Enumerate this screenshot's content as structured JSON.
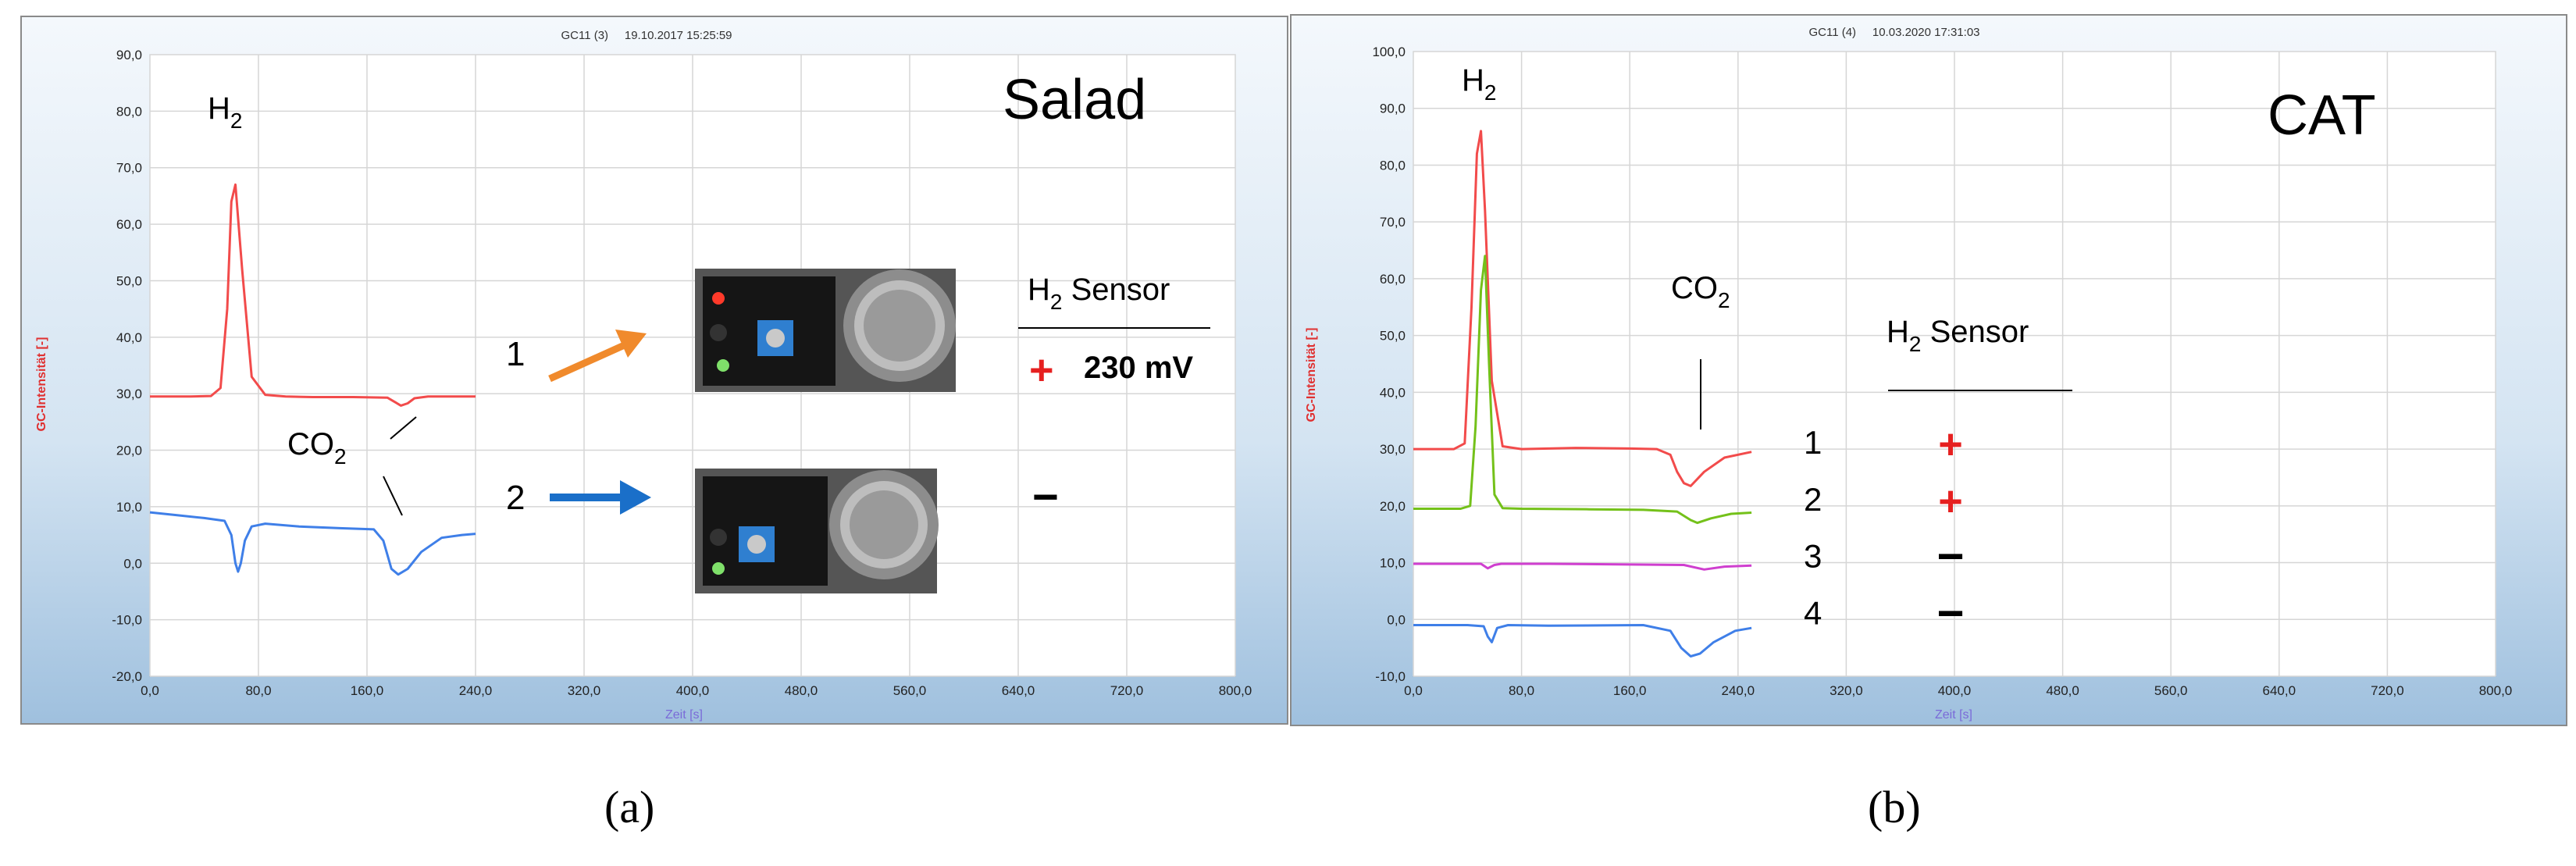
{
  "colors": {
    "red": "#f24b4b",
    "blue": "#3f7fe8",
    "green": "#74c11a",
    "magenta": "#cf3fcf",
    "orange": "#f08a2c",
    "arrow_blue": "#1a6fc9",
    "ylabel": "#e03030",
    "xlabel": "#7a6ad8"
  },
  "captions": {
    "a": "(a)",
    "b": "(b)"
  },
  "chart_data": [
    {
      "type": "line",
      "panel": "a",
      "header": "GC11 (3)     19.10.2017 15:25:59",
      "title": "Salad",
      "xlabel": "Zeit [s]",
      "ylabel": "GC-Intensität [-]",
      "xlim": [
        0,
        800
      ],
      "ylim": [
        -20,
        90
      ],
      "xticks": [
        "0,0",
        "80,0",
        "160,0",
        "240,0",
        "320,0",
        "400,0",
        "480,0",
        "560,0",
        "640,0",
        "720,0",
        "800,0"
      ],
      "yticks": [
        "-20,0",
        "-10,0",
        "0,0",
        "10,0",
        "20,0",
        "30,0",
        "40,0",
        "50,0",
        "60,0",
        "70,0",
        "80,0",
        "90,0"
      ],
      "grid": true,
      "series": [
        {
          "color": "red",
          "x": [
            0,
            30,
            45,
            52,
            57,
            60,
            63,
            68,
            75,
            85,
            100,
            120,
            150,
            175,
            180,
            185,
            190,
            195,
            205,
            220,
            240
          ],
          "y": [
            29.5,
            29.5,
            29.6,
            31,
            45,
            64,
            67,
            52,
            33,
            29.8,
            29.5,
            29.4,
            29.4,
            29.3,
            28.6,
            27.9,
            28.3,
            29.2,
            29.5,
            29.5,
            29.5
          ]
        },
        {
          "color": "blue",
          "x": [
            0,
            20,
            40,
            55,
            60,
            63,
            65,
            67,
            70,
            75,
            85,
            110,
            140,
            165,
            172,
            178,
            183,
            190,
            200,
            215,
            230,
            240
          ],
          "y": [
            9,
            8.5,
            8,
            7.5,
            5,
            0,
            -1.5,
            0,
            4,
            6.5,
            7,
            6.5,
            6.2,
            6,
            4,
            -1,
            -2,
            -1,
            2,
            4.5,
            5,
            5.2
          ]
        }
      ],
      "annotations": {
        "h2": "H",
        "h2_sub": "2",
        "co2": "CO",
        "co2_sub": "2",
        "n1": "1",
        "n2": "2",
        "sensor_head": "H",
        "sensor_head_sub": "2",
        "sensor_head_rest": " Sensor",
        "plus": "+",
        "value": "230 mV",
        "minus": "−"
      }
    },
    {
      "type": "line",
      "panel": "b",
      "header": "GC11 (4)     10.03.2020 17:31:03",
      "title": "CAT",
      "xlabel": "Zeit [s]",
      "ylabel": "GC-Intensität [-]",
      "xlim": [
        0,
        800
      ],
      "ylim": [
        -10,
        100
      ],
      "xticks": [
        "0,0",
        "80,0",
        "160,0",
        "240,0",
        "320,0",
        "400,0",
        "480,0",
        "560,0",
        "640,0",
        "720,0",
        "800,0"
      ],
      "yticks": [
        "-10,0",
        "0,0",
        "10,0",
        "20,0",
        "30,0",
        "40,0",
        "50,0",
        "60,0",
        "70,0",
        "80,0",
        "90,0",
        "100,0"
      ],
      "grid": true,
      "series": [
        {
          "color": "red",
          "x": [
            0,
            30,
            38,
            43,
            47,
            50,
            53,
            58,
            66,
            80,
            120,
            160,
            180,
            190,
            195,
            200,
            205,
            215,
            230,
            250
          ],
          "y": [
            30,
            30,
            31,
            55,
            82,
            86,
            72,
            42,
            30.5,
            30,
            30.2,
            30.1,
            30,
            29,
            26,
            24,
            23.5,
            26,
            28.5,
            29.5
          ]
        },
        {
          "color": "green",
          "x": [
            0,
            35,
            42,
            46,
            50,
            53,
            56,
            60,
            66,
            80,
            130,
            170,
            195,
            205,
            210,
            220,
            235,
            250
          ],
          "y": [
            19.5,
            19.5,
            20,
            34,
            58,
            64,
            45,
            22,
            19.6,
            19.5,
            19.4,
            19.3,
            19,
            17.5,
            17,
            17.8,
            18.6,
            18.8
          ]
        },
        {
          "color": "magenta",
          "x": [
            0,
            50,
            55,
            60,
            65,
            100,
            200,
            215,
            230,
            250
          ],
          "y": [
            9.8,
            9.8,
            9,
            9.6,
            9.8,
            9.8,
            9.6,
            8.8,
            9.3,
            9.5
          ]
        },
        {
          "color": "blue",
          "x": [
            0,
            40,
            52,
            55,
            58,
            62,
            70,
            100,
            170,
            190,
            198,
            205,
            212,
            222,
            238,
            250
          ],
          "y": [
            -1,
            -1,
            -1.2,
            -3,
            -4,
            -1.5,
            -1,
            -1.1,
            -1,
            -2,
            -5,
            -6.5,
            -6,
            -4,
            -2,
            -1.5
          ]
        }
      ],
      "annotations": {
        "h2": "H",
        "h2_sub": "2",
        "co2": "CO",
        "co2_sub": "2",
        "sensor_head": "H",
        "sensor_head_sub": "2",
        "sensor_head_rest": " Sensor",
        "rows": [
          {
            "n": "1",
            "sign": "+"
          },
          {
            "n": "2",
            "sign": "+"
          },
          {
            "n": "3",
            "sign": "−"
          },
          {
            "n": "4",
            "sign": "−"
          }
        ]
      }
    }
  ]
}
